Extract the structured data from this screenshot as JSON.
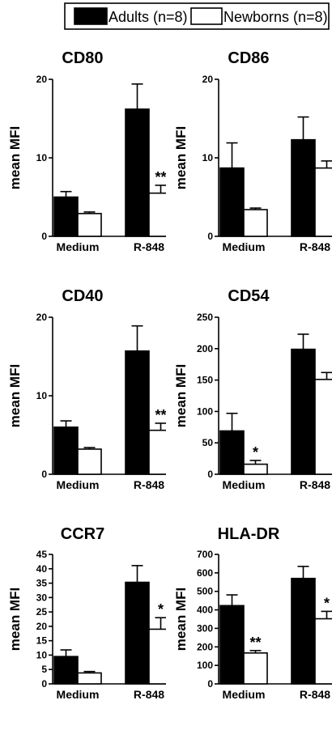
{
  "legend": {
    "items": [
      {
        "label": "Adults (n=8)",
        "fill": "#000000"
      },
      {
        "label": "Newborns (n=8)",
        "fill": "#ffffff"
      }
    ]
  },
  "colors": {
    "adults": "#000000",
    "newborns": "#ffffff",
    "outline": "#000000"
  },
  "chart_data": [
    {
      "type": "bar",
      "title": "CD80",
      "ylabel": "mean MFI",
      "categories": [
        "Medium",
        "R-848"
      ],
      "ylim": [
        0,
        20
      ],
      "yticks": [
        0,
        10,
        20
      ],
      "series": [
        {
          "name": "Adults (n=8)",
          "values": [
            5.0,
            16.2
          ],
          "errors": [
            0.7,
            3.2
          ],
          "annotations": [
            "",
            ""
          ]
        },
        {
          "name": "Newborns (n=8)",
          "values": [
            2.9,
            5.5
          ],
          "errors": [
            0.2,
            1.0
          ],
          "annotations": [
            "",
            "**"
          ]
        }
      ]
    },
    {
      "type": "bar",
      "title": "CD86",
      "ylabel": "mean MFI",
      "categories": [
        "Medium",
        "R-848"
      ],
      "ylim": [
        0,
        20
      ],
      "yticks": [
        0,
        10,
        20
      ],
      "series": [
        {
          "name": "Adults (n=8)",
          "values": [
            8.7,
            12.3
          ],
          "errors": [
            3.2,
            2.9
          ],
          "annotations": [
            "",
            ""
          ]
        },
        {
          "name": "Newborns (n=8)",
          "values": [
            3.4,
            8.7
          ],
          "errors": [
            0.2,
            0.9
          ],
          "annotations": [
            "",
            ""
          ]
        }
      ]
    },
    {
      "type": "bar",
      "title": "CD40",
      "ylabel": "mean MFI",
      "categories": [
        "Medium",
        "R-848"
      ],
      "ylim": [
        0,
        20
      ],
      "yticks": [
        0,
        10,
        20
      ],
      "series": [
        {
          "name": "Adults (n=8)",
          "values": [
            6.0,
            15.7
          ],
          "errors": [
            0.8,
            3.2
          ],
          "annotations": [
            "",
            ""
          ]
        },
        {
          "name": "Newborns (n=8)",
          "values": [
            3.2,
            5.6
          ],
          "errors": [
            0.2,
            0.9
          ],
          "annotations": [
            "",
            "**"
          ]
        }
      ]
    },
    {
      "type": "bar",
      "title": "CD54",
      "ylabel": "mean MFI",
      "categories": [
        "Medium",
        "R-848"
      ],
      "ylim": [
        0,
        250
      ],
      "yticks": [
        0,
        50,
        100,
        150,
        200,
        250
      ],
      "series": [
        {
          "name": "Adults (n=8)",
          "values": [
            69,
            199
          ],
          "errors": [
            28,
            24
          ],
          "annotations": [
            "",
            ""
          ]
        },
        {
          "name": "Newborns (n=8)",
          "values": [
            16,
            151
          ],
          "errors": [
            6,
            11
          ],
          "annotations": [
            "*",
            ""
          ]
        }
      ]
    },
    {
      "type": "bar",
      "title": "CCR7",
      "ylabel": "mean MFI",
      "categories": [
        "Medium",
        "R-848"
      ],
      "ylim": [
        0,
        45
      ],
      "yticks": [
        0,
        5,
        10,
        15,
        20,
        25,
        30,
        35,
        40,
        45
      ],
      "series": [
        {
          "name": "Adults (n=8)",
          "values": [
            9.5,
            35.3
          ],
          "errors": [
            2.3,
            5.8
          ],
          "annotations": [
            "",
            ""
          ]
        },
        {
          "name": "Newborns (n=8)",
          "values": [
            3.8,
            19.0
          ],
          "errors": [
            0.5,
            4.0
          ],
          "annotations": [
            "",
            "*"
          ]
        }
      ]
    },
    {
      "type": "bar",
      "title": "HLA-DR",
      "ylabel": "mean MFI",
      "categories": [
        "Medium",
        "R-848"
      ],
      "ylim": [
        0,
        700
      ],
      "yticks": [
        0,
        100,
        200,
        300,
        400,
        500,
        600,
        700
      ],
      "series": [
        {
          "name": "Adults (n=8)",
          "values": [
            423,
            570
          ],
          "errors": [
            58,
            65
          ],
          "annotations": [
            "",
            ""
          ]
        },
        {
          "name": "Newborns (n=8)",
          "values": [
            167,
            352
          ],
          "errors": [
            13,
            40
          ],
          "annotations": [
            "**",
            "*"
          ]
        }
      ]
    }
  ]
}
